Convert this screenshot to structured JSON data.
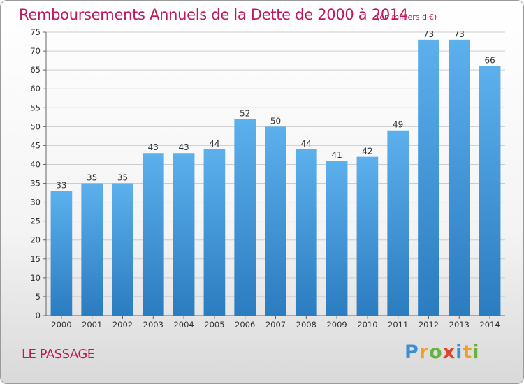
{
  "title": "Remboursements Annuels de la Dette de 2000 à 2014",
  "subtitle": "(en milliers d'€)",
  "commune": "LE PASSAGE",
  "logo": {
    "text": "Proxiti",
    "letters": [
      {
        "ch": "P",
        "color": "#3a8fd6"
      },
      {
        "ch": "r",
        "color": "#f0a01e"
      },
      {
        "ch": "o",
        "color": "#6ab23e"
      },
      {
        "ch": "x",
        "color": "#e2422a"
      },
      {
        "ch": "i",
        "color": "#3a8fd6"
      },
      {
        "ch": "t",
        "color": "#f0a01e"
      },
      {
        "ch": "i",
        "color": "#6ab23e"
      }
    ]
  },
  "colors": {
    "accent": "#c2185b",
    "bar_top": "#5cb0ec",
    "bar_bottom": "#2b7cc0",
    "grid": "#cccccc"
  },
  "chart_data": {
    "type": "bar",
    "title": "Remboursements Annuels de la Dette de 2000 à 2014",
    "xlabel": "",
    "ylabel": "",
    "categories": [
      "2000",
      "2001",
      "2002",
      "2003",
      "2004",
      "2005",
      "2006",
      "2007",
      "2008",
      "2009",
      "2010",
      "2011",
      "2012",
      "2013",
      "2014"
    ],
    "values": [
      33,
      35,
      35,
      43,
      43,
      44,
      52,
      50,
      44,
      41,
      42,
      49,
      73,
      73,
      66
    ],
    "ylim": [
      0,
      75
    ],
    "yticks": [
      0,
      5,
      10,
      15,
      20,
      25,
      30,
      35,
      40,
      45,
      50,
      55,
      60,
      65,
      70,
      75
    ],
    "grid": true
  }
}
